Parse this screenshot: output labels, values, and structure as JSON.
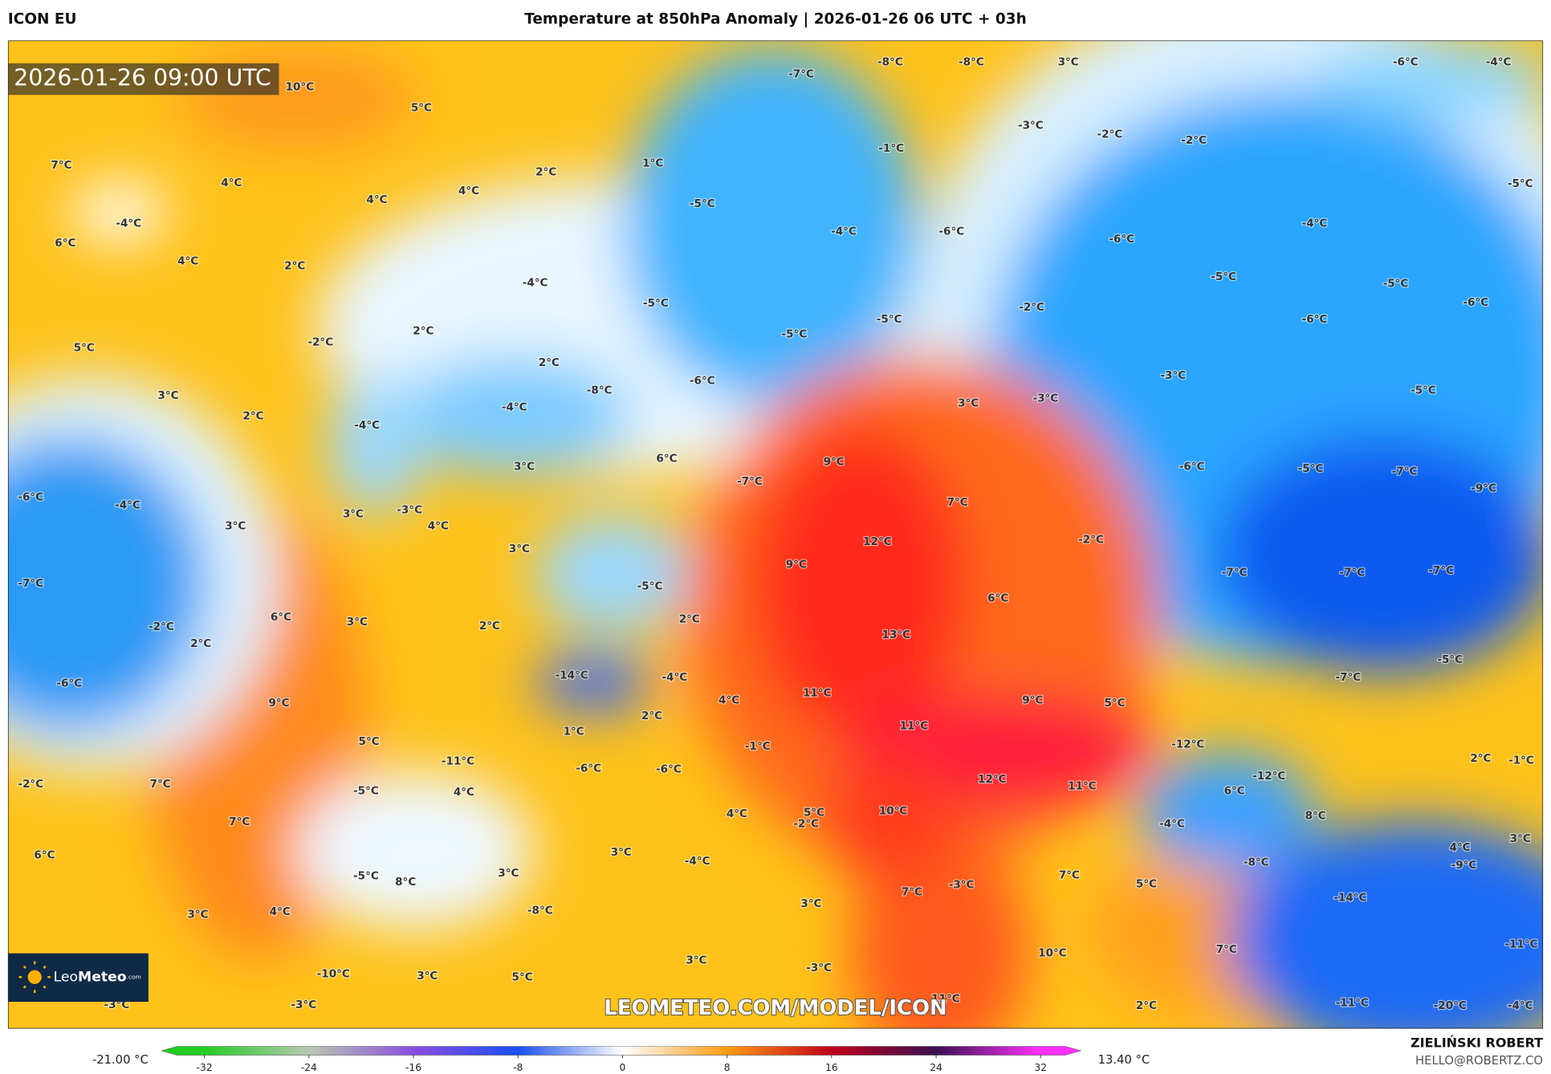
{
  "header": {
    "model": "ICON EU",
    "title": "Temperature at 850hPa Anomaly | 2026-01-26 06 UTC + 03h",
    "timestamp": "2026-01-26 09:00 UTC"
  },
  "map": {
    "labels": [
      "10°C",
      "5°C",
      "7°C",
      "4°C",
      "4°C",
      "4°C",
      "2°C",
      "1°C",
      "-4°C",
      "6°C",
      "4°C",
      "2°C",
      "5°C",
      "-2°C",
      "2°C",
      "3°C",
      "2°C",
      "-4°C",
      "-4°C",
      "3°C",
      "-6°C",
      "-4°C",
      "3°C",
      "3°C",
      "-3°C",
      "4°C",
      "3°C",
      "-7°C",
      "-2°C",
      "2°C",
      "6°C",
      "3°C",
      "2°C",
      "-6°C",
      "9°C",
      "-14°C",
      "-4°C",
      "2°C",
      "-5°C",
      "5°C",
      "-11°C",
      "1°C",
      "2°C",
      "4°C",
      "-2°C",
      "7°C",
      "-5°C",
      "4°C",
      "-6°C",
      "-6°C",
      "-1°C",
      "7°C",
      "6°C",
      "-5°C",
      "8°C",
      "3°C",
      "3°C",
      "-4°C",
      "4°C",
      "3°C",
      "4°C",
      "-8°C",
      "3°C",
      "-10°C",
      "3°C",
      "5°C",
      "3°C",
      "-3°C",
      "-3°C",
      "-3°C",
      "-7°C",
      "-8°C",
      "-8°C",
      "3°C",
      "-6°C",
      "-4°C",
      "-1°C",
      "-3°C",
      "-2°C",
      "-2°C",
      "-5°C",
      "-4°C",
      "-6°C",
      "-6°C",
      "-4°C",
      "-5°C",
      "-4°C",
      "-5°C",
      "-5°C",
      "-5°C",
      "-2°C",
      "-5°C",
      "-5°C",
      "-6°C",
      "-6°C",
      "2°C",
      "-6°C",
      "-8°C",
      "3°C",
      "-3°C",
      "-3°C",
      "-5°C",
      "6°C",
      "9°C",
      "-7°C",
      "7°C",
      "-6°C",
      "-5°C",
      "-7°C",
      "-9°C",
      "12°C",
      "9°C",
      "-2°C",
      "6°C",
      "-7°C",
      "-7°C",
      "-7°C",
      "13°C",
      "-5°C",
      "-7°C",
      "11°C",
      "9°C",
      "5°C",
      "11°C",
      "-12°C",
      "2°C",
      "-1°C",
      "12°C",
      "11°C",
      "-12°C",
      "6°C",
      "5°C",
      "-2°C",
      "10°C",
      "8°C",
      "3°C",
      "-4°C",
      "4°C",
      "-9°C",
      "-8°C",
      "7°C",
      "-3°C",
      "7°C",
      "5°C",
      "-14°C",
      "10°C",
      "7°C",
      "-11°C",
      "11°C",
      "2°C",
      "-11°C",
      "-20°C",
      "-4°C"
    ]
  },
  "colorbar": {
    "range": [
      -35.3,
      35.1
    ],
    "ticks": [
      -32,
      -24,
      -16,
      -8,
      0,
      8,
      16,
      24,
      32
    ],
    "colors": [
      "#22cc22",
      "#b8c8b0",
      "#8a4ee0",
      "#1a4ef0",
      "#ffffff",
      "#ff9a10",
      "#c0001a",
      "#3a1050",
      "#ff30ff"
    ],
    "min_label": "-21.00 °C",
    "max_label": "13.40 °C"
  },
  "watermark": "LEOMETEO.COM/MODEL/ICON",
  "logo": {
    "name": "Leo",
    "name_bold": "Meteo",
    "suffix": ".com"
  },
  "author": {
    "name": "ZIELIŃSKI ROBERT",
    "email": "HELLO@ROBERTZ.CO"
  }
}
